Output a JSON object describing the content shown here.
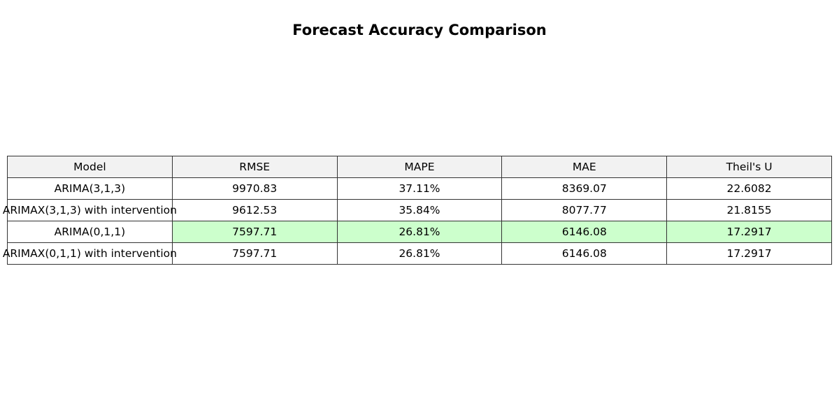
{
  "chart_data": {
    "type": "table",
    "title": "Forecast Accuracy Comparison",
    "columns": [
      "Model",
      "RMSE",
      "MAPE",
      "MAE",
      "Theil's U"
    ],
    "rows": [
      {
        "model": "ARIMA(3,1,3)",
        "rmse": "9970.83",
        "mape": "37.11%",
        "mae": "8369.07",
        "theil_u": "22.6082",
        "highlighted": false
      },
      {
        "model": "ARIMAX(3,1,3) with intervention",
        "rmse": "9612.53",
        "mape": "35.84%",
        "mae": "8077.77",
        "theil_u": "21.8155",
        "highlighted": false
      },
      {
        "model": "ARIMA(0,1,1)",
        "rmse": "7597.71",
        "mape": "26.81%",
        "mae": "6146.08",
        "theil_u": "17.2917",
        "highlighted": true
      },
      {
        "model": "ARIMAX(0,1,1) with intervention",
        "rmse": "7597.71",
        "mape": "26.81%",
        "mae": "6146.08",
        "theil_u": "17.2917",
        "highlighted": false
      }
    ]
  },
  "colors": {
    "header_background": "#f2f2f2",
    "highlight": "#ccffcc",
    "cell_background": "#ffffff",
    "border": "#333333"
  }
}
